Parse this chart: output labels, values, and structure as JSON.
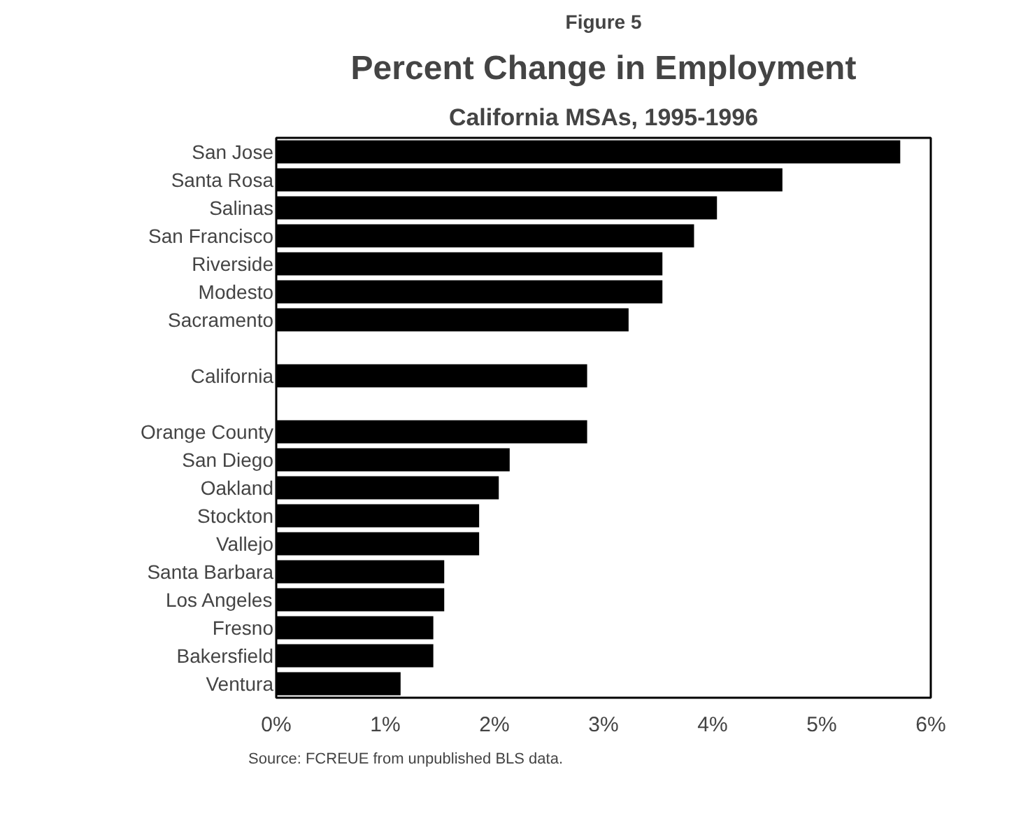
{
  "chart_data": {
    "type": "bar",
    "orientation": "horizontal",
    "title": "Percent Change in Employment",
    "subtitle": "California MSAs, 1995-1996",
    "annotations": [
      "Figure 5",
      "Source:  FCREUE from unpublished BLS data."
    ],
    "categories": [
      "San Jose",
      "Santa Rosa",
      "Salinas",
      "San Francisco",
      "Riverside",
      "Modesto",
      "Sacramento",
      null,
      "California",
      null,
      "Orange County",
      "San Diego",
      "Oakland",
      "Stockton",
      "Vallejo",
      "Santa Barbara",
      "Los Angeles",
      "Fresno",
      "Bakersfield",
      "Ventura"
    ],
    "values": [
      5.72,
      4.64,
      4.04,
      3.83,
      3.54,
      3.54,
      3.23,
      null,
      2.85,
      null,
      2.85,
      2.14,
      2.04,
      1.86,
      1.86,
      1.54,
      1.54,
      1.44,
      1.44,
      1.14
    ],
    "color": "#000000",
    "xlim": [
      0,
      6
    ],
    "xticks": [
      {
        "value": 0,
        "label": "0%"
      },
      {
        "value": 1,
        "label": "1%"
      },
      {
        "value": 2,
        "label": "2%"
      },
      {
        "value": 3,
        "label": "3%"
      },
      {
        "value": 4,
        "label": "4%"
      },
      {
        "value": 5,
        "label": "5%"
      },
      {
        "value": 6,
        "label": "6%"
      }
    ],
    "grid": false
  }
}
